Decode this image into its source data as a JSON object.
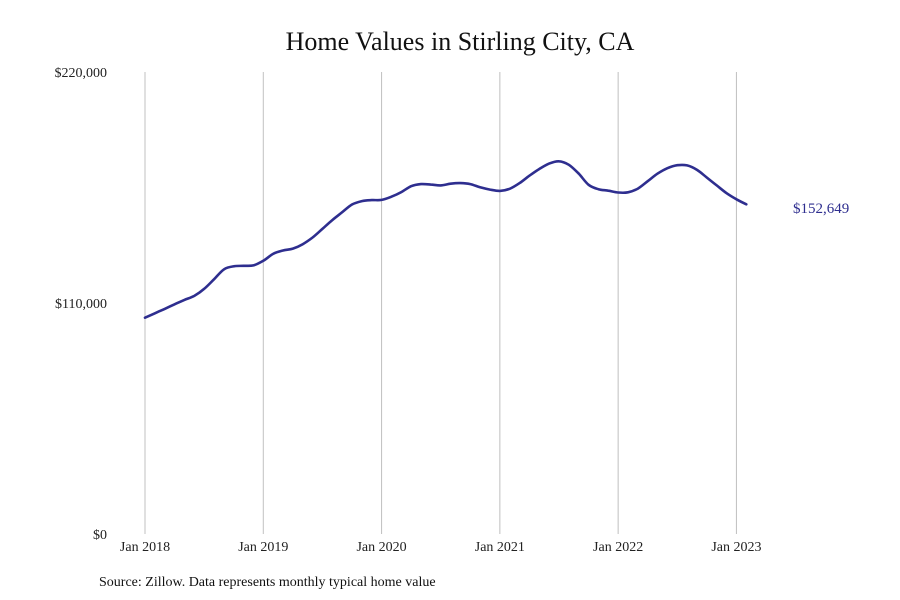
{
  "chart_data": {
    "type": "line",
    "title": "Home Values in Stirling City, CA",
    "source_note": "Source: Zillow. Data represents monthly typical home value",
    "xlabel": "",
    "ylabel": "",
    "ylim": [
      0,
      220000
    ],
    "y_ticks": [
      {
        "value": 0,
        "label": "$0"
      },
      {
        "value": 110000,
        "label": "$110,000"
      },
      {
        "value": 220000,
        "label": "$220,000"
      }
    ],
    "x_ticks": [
      {
        "date": "2018-01",
        "label": "Jan 2018"
      },
      {
        "date": "2019-01",
        "label": "Jan 2019"
      },
      {
        "date": "2020-01",
        "label": "Jan 2020"
      },
      {
        "date": "2021-01",
        "label": "Jan 2021"
      },
      {
        "date": "2022-01",
        "label": "Jan 2022"
      },
      {
        "date": "2023-01",
        "label": "Jan 2023"
      }
    ],
    "xlim": [
      "2018-01",
      "2023-11"
    ],
    "grid": {
      "vertical": true,
      "horizontal": false
    },
    "line_color": "#2e2e8f",
    "grid_color": "#c0c0c0",
    "end_label": "$152,649",
    "series": [
      {
        "name": "",
        "x": [
          "2018-01",
          "2018-02",
          "2018-03",
          "2018-04",
          "2018-05",
          "2018-06",
          "2018-07",
          "2018-08",
          "2018-09",
          "2018-10",
          "2018-11",
          "2018-12",
          "2019-01",
          "2019-02",
          "2019-03",
          "2019-04",
          "2019-05",
          "2019-06",
          "2019-07",
          "2019-08",
          "2019-09",
          "2019-10",
          "2019-11",
          "2019-12",
          "2020-01",
          "2020-02",
          "2020-03",
          "2020-04",
          "2020-05",
          "2020-06",
          "2020-07",
          "2020-08",
          "2020-09",
          "2020-10",
          "2020-11",
          "2020-12",
          "2021-01",
          "2021-02",
          "2021-03",
          "2021-04",
          "2021-05",
          "2021-06",
          "2021-07",
          "2021-08",
          "2021-09",
          "2021-10",
          "2021-11",
          "2021-12",
          "2022-01",
          "2022-02",
          "2022-03",
          "2022-04",
          "2022-05",
          "2022-06",
          "2022-07",
          "2022-08",
          "2022-09",
          "2022-10",
          "2022-11",
          "2022-12",
          "2023-01",
          "2023-02"
        ],
        "values": [
          103000,
          105100,
          107200,
          109400,
          111500,
          113400,
          116700,
          121300,
          126000,
          127500,
          127700,
          127900,
          130100,
          133400,
          135000,
          135900,
          138000,
          141200,
          145300,
          149500,
          153200,
          156900,
          158500,
          159000,
          159100,
          160600,
          162800,
          165600,
          166600,
          166400,
          166000,
          166800,
          167100,
          166600,
          165100,
          164000,
          163400,
          164400,
          167100,
          170600,
          173800,
          176400,
          177500,
          175800,
          171600,
          166300,
          164200,
          163500,
          162600,
          162700,
          164500,
          168000,
          171600,
          174200,
          175600,
          175500,
          173400,
          169700,
          166000,
          162300,
          159400,
          157000
        ]
      }
    ]
  }
}
